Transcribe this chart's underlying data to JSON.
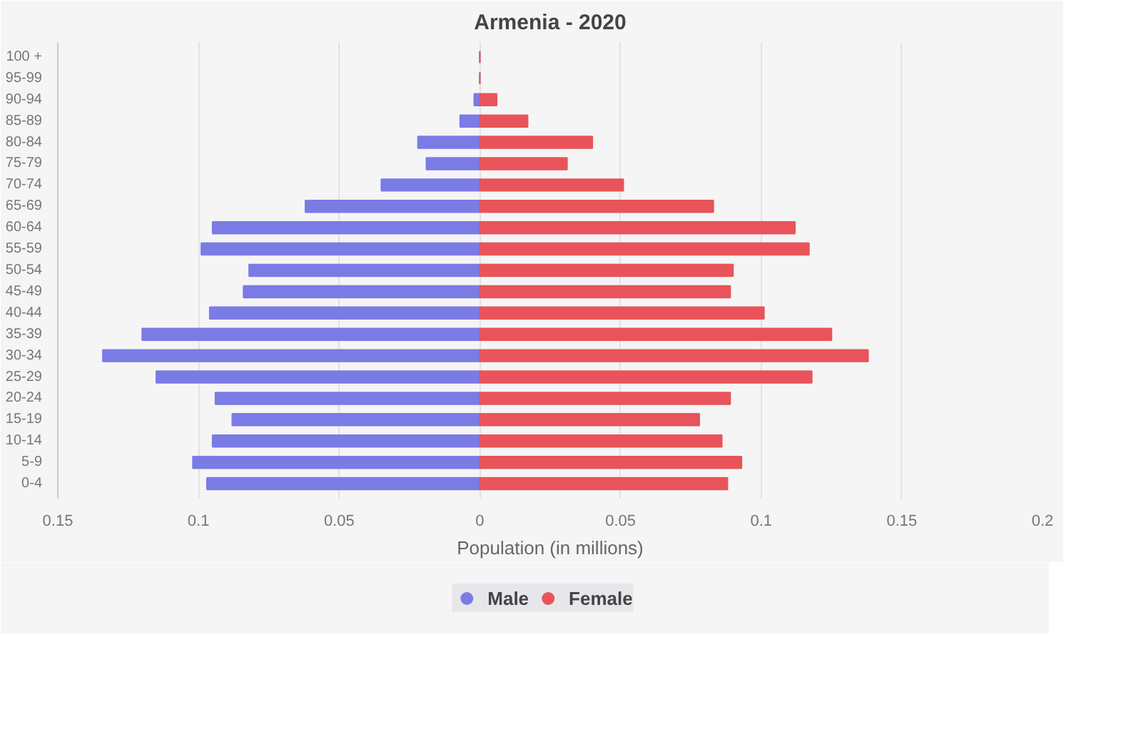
{
  "chart_data": {
    "type": "bar",
    "orientation": "horizontal",
    "title": "Armenia - 2020",
    "xlabel": "Population (in millions)",
    "categories": [
      "100 +",
      "95-99",
      "90-94",
      "85-89",
      "80-84",
      "75-79",
      "70-74",
      "65-69",
      "60-64",
      "55-59",
      "50-54",
      "45-49",
      "40-44",
      "35-39",
      "30-34",
      "25-29",
      "20-24",
      "15-19",
      "10-14",
      "5-9",
      "0-4"
    ],
    "series": [
      {
        "name": "Male",
        "color": "#7b7be6",
        "values": [
          0,
          0,
          -0.002,
          -0.007,
          -0.022,
          -0.019,
          -0.035,
          -0.062,
          -0.095,
          -0.099,
          -0.082,
          -0.084,
          -0.096,
          -0.12,
          -0.134,
          -0.115,
          -0.094,
          -0.088,
          -0.095,
          -0.102,
          -0.097
        ]
      },
      {
        "name": "Female",
        "color": "#e8545a",
        "values": [
          0,
          0,
          0.006,
          0.017,
          0.04,
          0.031,
          0.051,
          0.083,
          0.112,
          0.117,
          0.09,
          0.089,
          0.101,
          0.125,
          0.138,
          0.118,
          0.089,
          0.078,
          0.086,
          0.093,
          0.088
        ]
      }
    ],
    "xlim": [
      -0.15,
      0.2
    ],
    "xticks": [
      {
        "value": -0.15,
        "label": "0.15"
      },
      {
        "value": -0.1,
        "label": "0.1"
      },
      {
        "value": -0.05,
        "label": "0.05"
      },
      0,
      0.05,
      0.1,
      0.15,
      0.2
    ],
    "grid": "x",
    "legend": "bottom",
    "stacked": true
  }
}
